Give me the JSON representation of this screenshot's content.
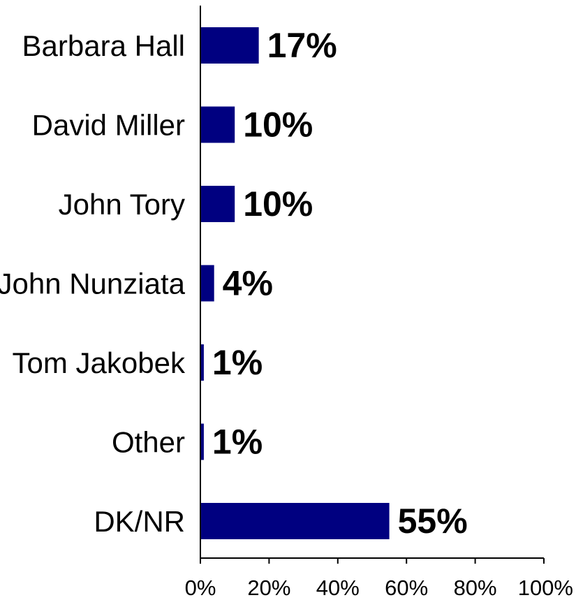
{
  "chart_data": {
    "type": "bar",
    "orientation": "horizontal",
    "categories": [
      "Barbara Hall",
      "David Miller",
      "John Tory",
      "John Nunziata",
      "Tom Jakobek",
      "Other",
      "DK/NR"
    ],
    "values": [
      17,
      10,
      10,
      4,
      1,
      1,
      55
    ],
    "value_labels": [
      "17%",
      "10%",
      "10%",
      "4%",
      "1%",
      "1%",
      "55%"
    ],
    "xlim": [
      0,
      100
    ],
    "x_ticks": [
      0,
      20,
      40,
      60,
      80,
      100
    ],
    "x_tick_labels": [
      "0%",
      "20%",
      "40%",
      "60%",
      "80%",
      "100%"
    ],
    "title": "",
    "xlabel": "",
    "ylabel": "",
    "grid": false,
    "legend": "none",
    "bar_color": "#000080"
  }
}
